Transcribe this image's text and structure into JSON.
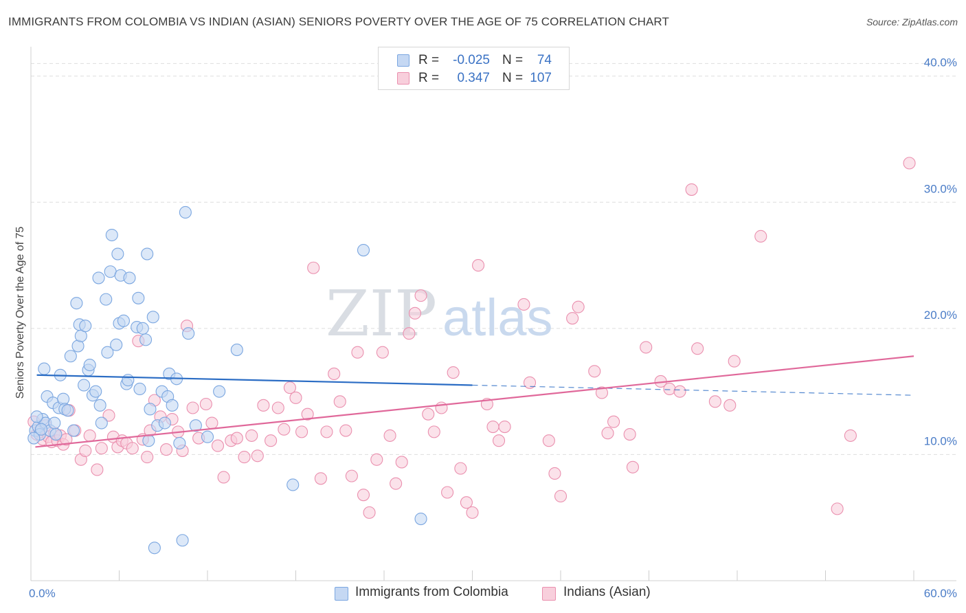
{
  "title": "IMMIGRANTS FROM COLOMBIA VS INDIAN (ASIAN) SENIORS POVERTY OVER THE AGE OF 75 CORRELATION CHART",
  "source": "Source: ZipAtlas.com",
  "watermark": {
    "zip": "ZIP",
    "atlas": "atlas"
  },
  "legend": {
    "rows": [
      {
        "r_label": "R =",
        "r_value": "-0.025",
        "n_label": "N =",
        "n_value": "74"
      },
      {
        "r_label": "R =",
        "r_value": "0.347",
        "n_label": "N =",
        "n_value": "107"
      }
    ]
  },
  "bottom_legend": {
    "series1": "Immigrants from Colombia",
    "series2": "Indians (Asian)"
  },
  "colors": {
    "blue_fill": "#c5d8f3",
    "blue_stroke": "#7aa6e0",
    "blue_line": "#2a6cc4",
    "pink_fill": "#f8cfdc",
    "pink_stroke": "#ea8fae",
    "pink_line": "#e0689a",
    "tick_text": "#4a7cc7",
    "grid": "#dddddd"
  },
  "chart_data": {
    "type": "scatter",
    "title": "IMMIGRANTS FROM COLOMBIA VS INDIAN (ASIAN) SENIORS POVERTY OVER THE AGE OF 75 CORRELATION CHART",
    "xlabel": "",
    "ylabel": "Seniors Poverty Over the Age of 75",
    "xlim": [
      0,
      60
    ],
    "ylim": [
      0,
      42
    ],
    "x_tick_labels": [
      "0.0%",
      "60.0%"
    ],
    "y_ticks": [
      10,
      20,
      30,
      40
    ],
    "y_tick_labels": [
      "10.0%",
      "20.0%",
      "30.0%",
      "40.0%"
    ],
    "grid": true,
    "series": [
      {
        "name": "Immigrants from Colombia",
        "r": -0.025,
        "n": 74,
        "trend": {
          "x0": 0.4,
          "y0": 16.3,
          "x1": 30,
          "y1": 15.5,
          "dash_to_x": 60,
          "dash_to_y": 14.7
        },
        "points": [
          [
            0.3,
            11.9
          ],
          [
            0.5,
            12.2
          ],
          [
            0.6,
            11.6
          ],
          [
            0.8,
            12.8
          ],
          [
            0.9,
            16.8
          ],
          [
            1.0,
            12.5
          ],
          [
            1.1,
            14.6
          ],
          [
            1.3,
            11.9
          ],
          [
            1.5,
            14.1
          ],
          [
            1.6,
            12.5
          ],
          [
            1.7,
            11.6
          ],
          [
            1.9,
            13.7
          ],
          [
            2.0,
            16.3
          ],
          [
            2.2,
            14.4
          ],
          [
            2.3,
            13.6
          ],
          [
            2.5,
            13.5
          ],
          [
            2.7,
            17.8
          ],
          [
            2.9,
            11.9
          ],
          [
            3.1,
            22.0
          ],
          [
            3.2,
            18.6
          ],
          [
            3.3,
            20.3
          ],
          [
            3.4,
            19.4
          ],
          [
            3.6,
            15.5
          ],
          [
            3.7,
            20.2
          ],
          [
            3.9,
            16.7
          ],
          [
            4.0,
            17.1
          ],
          [
            4.2,
            14.7
          ],
          [
            4.4,
            15.0
          ],
          [
            4.6,
            24.0
          ],
          [
            4.7,
            13.9
          ],
          [
            4.8,
            12.5
          ],
          [
            5.1,
            22.3
          ],
          [
            5.2,
            18.1
          ],
          [
            5.4,
            24.5
          ],
          [
            5.5,
            27.4
          ],
          [
            5.8,
            18.7
          ],
          [
            5.9,
            25.9
          ],
          [
            6.0,
            20.4
          ],
          [
            6.1,
            24.2
          ],
          [
            6.3,
            20.6
          ],
          [
            6.5,
            15.6
          ],
          [
            6.6,
            15.9
          ],
          [
            6.7,
            24.0
          ],
          [
            7.2,
            20.1
          ],
          [
            7.3,
            22.4
          ],
          [
            7.4,
            15.2
          ],
          [
            7.6,
            20.0
          ],
          [
            7.8,
            19.1
          ],
          [
            7.9,
            25.9
          ],
          [
            8.0,
            11.1
          ],
          [
            8.1,
            13.6
          ],
          [
            8.3,
            20.9
          ],
          [
            8.4,
            2.6
          ],
          [
            8.6,
            12.3
          ],
          [
            8.9,
            15.0
          ],
          [
            9.1,
            12.5
          ],
          [
            9.3,
            14.6
          ],
          [
            9.4,
            16.4
          ],
          [
            9.6,
            13.9
          ],
          [
            9.9,
            16.0
          ],
          [
            10.1,
            10.9
          ],
          [
            10.3,
            3.2
          ],
          [
            10.5,
            29.2
          ],
          [
            10.7,
            19.6
          ],
          [
            11.2,
            12.3
          ],
          [
            12.0,
            11.4
          ],
          [
            12.8,
            15.0
          ],
          [
            14.0,
            18.3
          ],
          [
            17.8,
            7.6
          ],
          [
            22.6,
            26.2
          ],
          [
            26.5,
            4.9
          ],
          [
            0.2,
            11.3
          ],
          [
            0.4,
            13.0
          ],
          [
            0.7,
            12.0
          ]
        ]
      },
      {
        "name": "Indians (Asian)",
        "r": 0.347,
        "n": 107,
        "trend": {
          "x0": 0.3,
          "y0": 10.6,
          "x1": 60,
          "y1": 17.8
        },
        "points": [
          [
            0.2,
            12.6
          ],
          [
            0.4,
            11.6
          ],
          [
            0.6,
            11.8
          ],
          [
            0.8,
            11.2
          ],
          [
            1.0,
            12.3
          ],
          [
            1.2,
            11.4
          ],
          [
            1.4,
            11.0
          ],
          [
            1.6,
            11.7
          ],
          [
            1.8,
            11.1
          ],
          [
            2.0,
            11.5
          ],
          [
            2.2,
            10.8
          ],
          [
            2.4,
            11.2
          ],
          [
            2.6,
            13.5
          ],
          [
            3.0,
            11.9
          ],
          [
            3.4,
            9.6
          ],
          [
            3.7,
            10.3
          ],
          [
            4.0,
            11.5
          ],
          [
            4.5,
            8.8
          ],
          [
            4.8,
            10.5
          ],
          [
            5.3,
            13.1
          ],
          [
            5.6,
            11.4
          ],
          [
            5.9,
            10.6
          ],
          [
            6.2,
            11.1
          ],
          [
            6.5,
            10.9
          ],
          [
            6.9,
            10.5
          ],
          [
            7.3,
            19.0
          ],
          [
            7.6,
            11.2
          ],
          [
            7.9,
            9.8
          ],
          [
            8.1,
            11.9
          ],
          [
            8.4,
            14.3
          ],
          [
            8.8,
            13.0
          ],
          [
            9.2,
            10.4
          ],
          [
            9.6,
            12.8
          ],
          [
            10.0,
            11.8
          ],
          [
            10.3,
            10.3
          ],
          [
            10.6,
            20.2
          ],
          [
            11.0,
            13.7
          ],
          [
            11.4,
            11.3
          ],
          [
            11.9,
            14.0
          ],
          [
            12.3,
            12.5
          ],
          [
            12.7,
            10.7
          ],
          [
            13.1,
            8.2
          ],
          [
            13.6,
            11.1
          ],
          [
            14.0,
            11.3
          ],
          [
            14.5,
            9.8
          ],
          [
            15.0,
            11.5
          ],
          [
            15.4,
            9.9
          ],
          [
            15.8,
            13.9
          ],
          [
            16.3,
            11.1
          ],
          [
            16.8,
            13.7
          ],
          [
            17.2,
            12.0
          ],
          [
            17.6,
            15.3
          ],
          [
            18.0,
            14.5
          ],
          [
            18.4,
            11.8
          ],
          [
            18.8,
            13.2
          ],
          [
            19.2,
            24.8
          ],
          [
            19.7,
            8.1
          ],
          [
            20.1,
            11.8
          ],
          [
            20.6,
            16.4
          ],
          [
            21.0,
            14.2
          ],
          [
            21.4,
            11.9
          ],
          [
            21.8,
            8.3
          ],
          [
            22.2,
            18.1
          ],
          [
            22.6,
            6.8
          ],
          [
            23.0,
            5.4
          ],
          [
            23.5,
            9.6
          ],
          [
            23.9,
            18.1
          ],
          [
            24.4,
            11.5
          ],
          [
            24.8,
            7.7
          ],
          [
            25.2,
            9.4
          ],
          [
            25.7,
            19.6
          ],
          [
            26.1,
            21.2
          ],
          [
            26.5,
            22.6
          ],
          [
            27.0,
            13.2
          ],
          [
            27.4,
            11.8
          ],
          [
            27.9,
            13.7
          ],
          [
            28.3,
            7.0
          ],
          [
            28.7,
            16.5
          ],
          [
            29.2,
            8.9
          ],
          [
            29.6,
            6.2
          ],
          [
            30.0,
            5.4
          ],
          [
            30.4,
            25.0
          ],
          [
            31.0,
            14.0
          ],
          [
            31.4,
            12.2
          ],
          [
            31.8,
            11.1
          ],
          [
            32.2,
            12.2
          ],
          [
            33.5,
            21.9
          ],
          [
            33.9,
            15.7
          ],
          [
            35.2,
            11.1
          ],
          [
            35.6,
            8.5
          ],
          [
            36.0,
            6.7
          ],
          [
            36.8,
            20.8
          ],
          [
            37.2,
            21.7
          ],
          [
            38.3,
            16.6
          ],
          [
            38.8,
            14.9
          ],
          [
            39.2,
            11.7
          ],
          [
            39.6,
            12.6
          ],
          [
            40.7,
            11.6
          ],
          [
            40.9,
            9.0
          ],
          [
            41.8,
            18.5
          ],
          [
            42.8,
            15.8
          ],
          [
            43.4,
            15.2
          ],
          [
            44.1,
            15.0
          ],
          [
            44.9,
            31.0
          ],
          [
            45.3,
            18.4
          ],
          [
            46.5,
            14.2
          ],
          [
            47.5,
            13.9
          ],
          [
            47.8,
            17.4
          ],
          [
            49.6,
            27.3
          ],
          [
            54.8,
            5.7
          ],
          [
            55.7,
            11.5
          ],
          [
            59.7,
            33.1
          ]
        ]
      }
    ]
  }
}
